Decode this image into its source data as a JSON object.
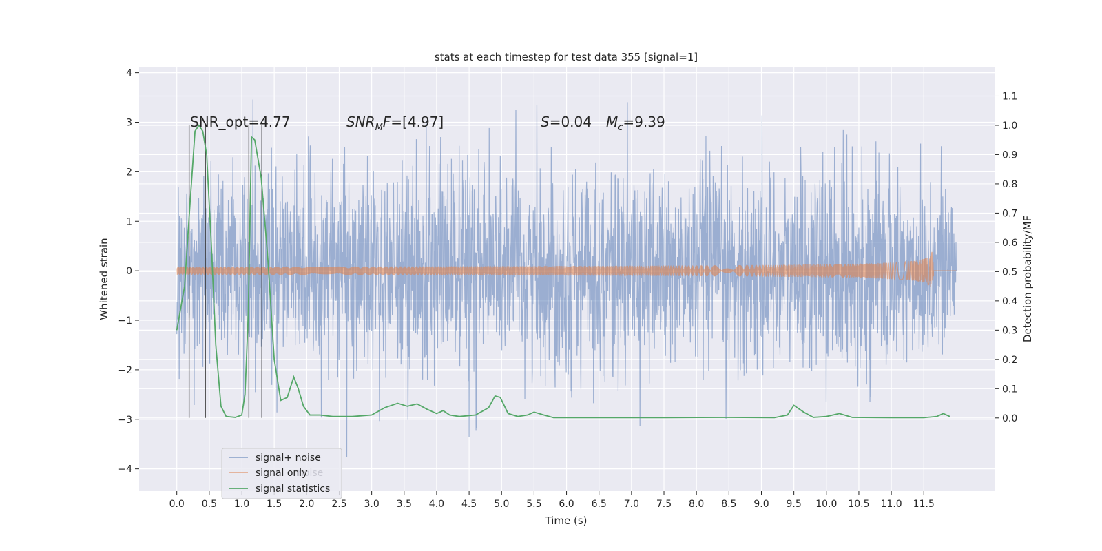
{
  "chart_data": {
    "type": "line",
    "title": "stats at each timestep for test data 355 [signal=1]",
    "xlabel": "Time (s)",
    "ylabel": "Whitened strain",
    "ylabel_right": "Detection probability/MF",
    "xlim": [
      -0.58,
      12.6
    ],
    "ylim": [
      -4.45,
      4.12
    ],
    "ylim_right": [
      -0.25,
      1.2
    ],
    "x_ticks": [
      0.0,
      0.5,
      1.0,
      1.5,
      2.0,
      2.5,
      3.0,
      3.5,
      4.0,
      4.5,
      5.0,
      5.5,
      6.0,
      6.5,
      7.0,
      7.5,
      8.0,
      8.5,
      9.0,
      9.5,
      10.0,
      10.5,
      11.0,
      11.5
    ],
    "x_tick_labels": [
      "0.0",
      "0.5",
      "1.0",
      "1.5",
      "2.0",
      "2.5",
      "3.0",
      "3.5",
      "4.0",
      "4.5",
      "5.0",
      "5.5",
      "6.0",
      "6.5",
      "7.0",
      "7.5",
      "8.0",
      "8.5",
      "9.0",
      "9.5",
      "10.0",
      "10.5",
      "11.0",
      "11.5"
    ],
    "y_ticks": [
      -4,
      -3,
      -2,
      -1,
      0,
      1,
      2,
      3,
      4
    ],
    "y_tick_labels": [
      "−4",
      "−3",
      "−2",
      "−1",
      "0",
      "1",
      "2",
      "3",
      "4"
    ],
    "y_right_ticks": [
      0.0,
      0.1,
      0.2,
      0.3,
      0.4,
      0.5,
      0.6,
      0.7,
      0.8,
      0.9,
      1.0,
      1.1
    ],
    "y_right_tick_labels": [
      "0.0",
      "0.1",
      "0.2",
      "0.3",
      "0.4",
      "0.5",
      "0.6",
      "0.7",
      "0.8",
      "0.9",
      "1.0",
      "1.1"
    ],
    "grid": true,
    "legend_position": "lower-left",
    "legend_ghost_text": "noise",
    "colors": {
      "signal_noise": "#4c72b0",
      "signal_only": "#dd8452",
      "signal_statistics": "#55a868",
      "marker_lines": "#3a3a3a",
      "axes_bg": "#eaeaf2",
      "grid": "#ffffff"
    },
    "annotations": [
      {
        "text": "SNR_opt=4.77"
      },
      {
        "text": "SNR",
        "sub": "M",
        "suffix": "F=[4.97]",
        "italic": true
      },
      {
        "text": "S",
        "suffix": "=0.04",
        "italic": true
      },
      {
        "text": "M",
        "sub": "c",
        "suffix": "=9.39",
        "italic": true
      }
    ],
    "series": [
      {
        "name": "signal+ noise",
        "axis": "left",
        "x_range": [
          0.0,
          12.0
        ],
        "envelope_p_abs": 3.8,
        "envelope_n_abs": 4.1
      },
      {
        "name": "signal only",
        "axis": "left",
        "x_range": [
          0.0,
          11.65
        ],
        "chirp_peak_amplitude": 0.6,
        "chirp_end": 11.65
      },
      {
        "name": "signal statistics",
        "axis": "right",
        "x": [
          0.0,
          0.12,
          0.2,
          0.28,
          0.34,
          0.4,
          0.46,
          0.53,
          0.6,
          0.68,
          0.76,
          0.9,
          1.0,
          1.05,
          1.1,
          1.15,
          1.2,
          1.3,
          1.4,
          1.5,
          1.6,
          1.7,
          1.8,
          1.87,
          1.95,
          2.05,
          2.2,
          2.4,
          2.7,
          3.0,
          3.2,
          3.4,
          3.55,
          3.7,
          3.85,
          4.0,
          4.1,
          4.2,
          4.35,
          4.6,
          4.8,
          4.9,
          4.98,
          5.1,
          5.25,
          5.4,
          5.5,
          5.65,
          5.8,
          6.5,
          7.5,
          8.5,
          9.2,
          9.4,
          9.5,
          9.65,
          9.8,
          10.0,
          10.2,
          10.4,
          11.0,
          11.5,
          11.7,
          11.8,
          11.9
        ],
        "values": [
          0.3,
          0.45,
          0.72,
          0.98,
          1.0,
          0.98,
          0.9,
          0.6,
          0.25,
          0.04,
          0.005,
          0.002,
          0.01,
          0.08,
          0.35,
          0.96,
          0.95,
          0.82,
          0.55,
          0.2,
          0.06,
          0.07,
          0.14,
          0.1,
          0.04,
          0.01,
          0.01,
          0.005,
          0.005,
          0.01,
          0.035,
          0.05,
          0.04,
          0.048,
          0.03,
          0.015,
          0.025,
          0.01,
          0.005,
          0.01,
          0.035,
          0.075,
          0.07,
          0.015,
          0.005,
          0.01,
          0.02,
          0.01,
          0.001,
          0.001,
          0.001,
          0.002,
          0.001,
          0.01,
          0.043,
          0.02,
          0.002,
          0.005,
          0.015,
          0.002,
          0.001,
          0.001,
          0.005,
          0.015,
          0.005
        ]
      }
    ],
    "marker_lines_x": [
      0.19,
      0.44,
      1.11,
      1.31
    ]
  }
}
